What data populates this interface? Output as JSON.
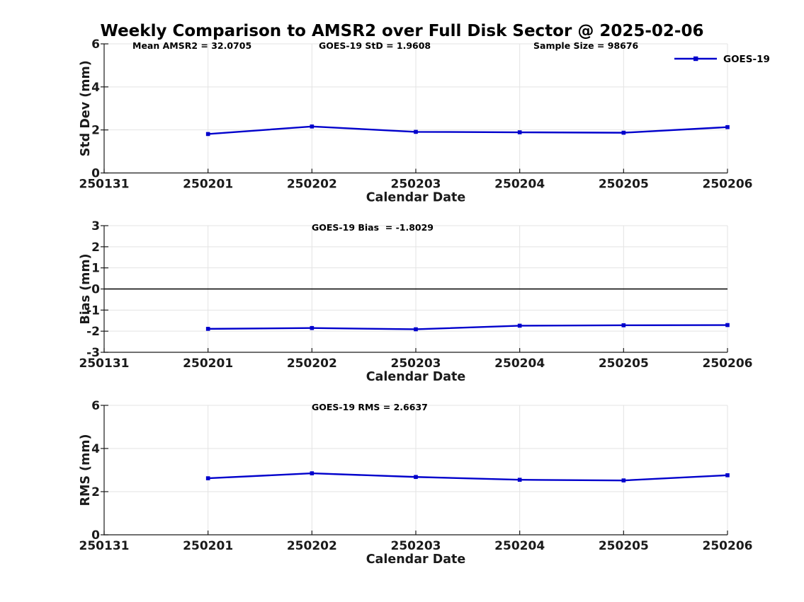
{
  "figure": {
    "title": "Weekly Comparison to AMSR2 over Full Disk Sector @ 2025-02-06",
    "legend": {
      "label": "GOES-19"
    }
  },
  "colors": {
    "series": "#0000CC",
    "axis": "#1A1A1A",
    "grid": "#E3E3E3",
    "zero_line": "#000000"
  },
  "chart_data": [
    {
      "type": "line",
      "panel": "std-dev",
      "annotations": [
        "Mean AMSR2 = 32.0705",
        "GOES-19 StD = 1.9608",
        "Sample Size = 98676"
      ],
      "xlabel": "Calendar Date",
      "ylabel": "Std Dev (mm)",
      "x_ticks": [
        "250131",
        "250201",
        "250202",
        "250203",
        "250204",
        "250205",
        "250206"
      ],
      "y_ticks": [
        0,
        2,
        4,
        6
      ],
      "ylim": [
        0,
        6
      ],
      "grid": true,
      "zero_line": false,
      "show_legend": true,
      "legend_position": "top-right",
      "series": [
        {
          "name": "GOES-19",
          "x": [
            "250201",
            "250202",
            "250203",
            "250204",
            "250205",
            "250206"
          ],
          "values": [
            1.81,
            2.16,
            1.91,
            1.89,
            1.87,
            2.13
          ]
        }
      ]
    },
    {
      "type": "line",
      "panel": "bias",
      "annotations": [
        "GOES-19 Bias  = -1.8029"
      ],
      "xlabel": "Calendar Date",
      "ylabel": "Bias (mm)",
      "x_ticks": [
        "250131",
        "250201",
        "250202",
        "250203",
        "250204",
        "250205",
        "250206"
      ],
      "y_ticks": [
        -3,
        -2,
        -1,
        0,
        1,
        2,
        3
      ],
      "ylim": [
        -3,
        3
      ],
      "grid": true,
      "zero_line": true,
      "show_legend": false,
      "legend_position": "",
      "series": [
        {
          "name": "GOES-19",
          "x": [
            "250201",
            "250202",
            "250203",
            "250204",
            "250205",
            "250206"
          ],
          "values": [
            -1.89,
            -1.85,
            -1.91,
            -1.74,
            -1.72,
            -1.71
          ]
        }
      ]
    },
    {
      "type": "line",
      "panel": "rms",
      "annotations": [
        "GOES-19 RMS = 2.6637"
      ],
      "xlabel": "Calendar Date",
      "ylabel": "RMS (mm)",
      "x_ticks": [
        "250131",
        "250201",
        "250202",
        "250203",
        "250204",
        "250205",
        "250206"
      ],
      "y_ticks": [
        0,
        2,
        4,
        6
      ],
      "ylim": [
        0,
        6
      ],
      "grid": true,
      "zero_line": false,
      "show_legend": false,
      "legend_position": "",
      "series": [
        {
          "name": "GOES-19",
          "x": [
            "250201",
            "250202",
            "250203",
            "250204",
            "250205",
            "250206"
          ],
          "values": [
            2.62,
            2.85,
            2.68,
            2.55,
            2.52,
            2.76
          ]
        }
      ]
    }
  ]
}
